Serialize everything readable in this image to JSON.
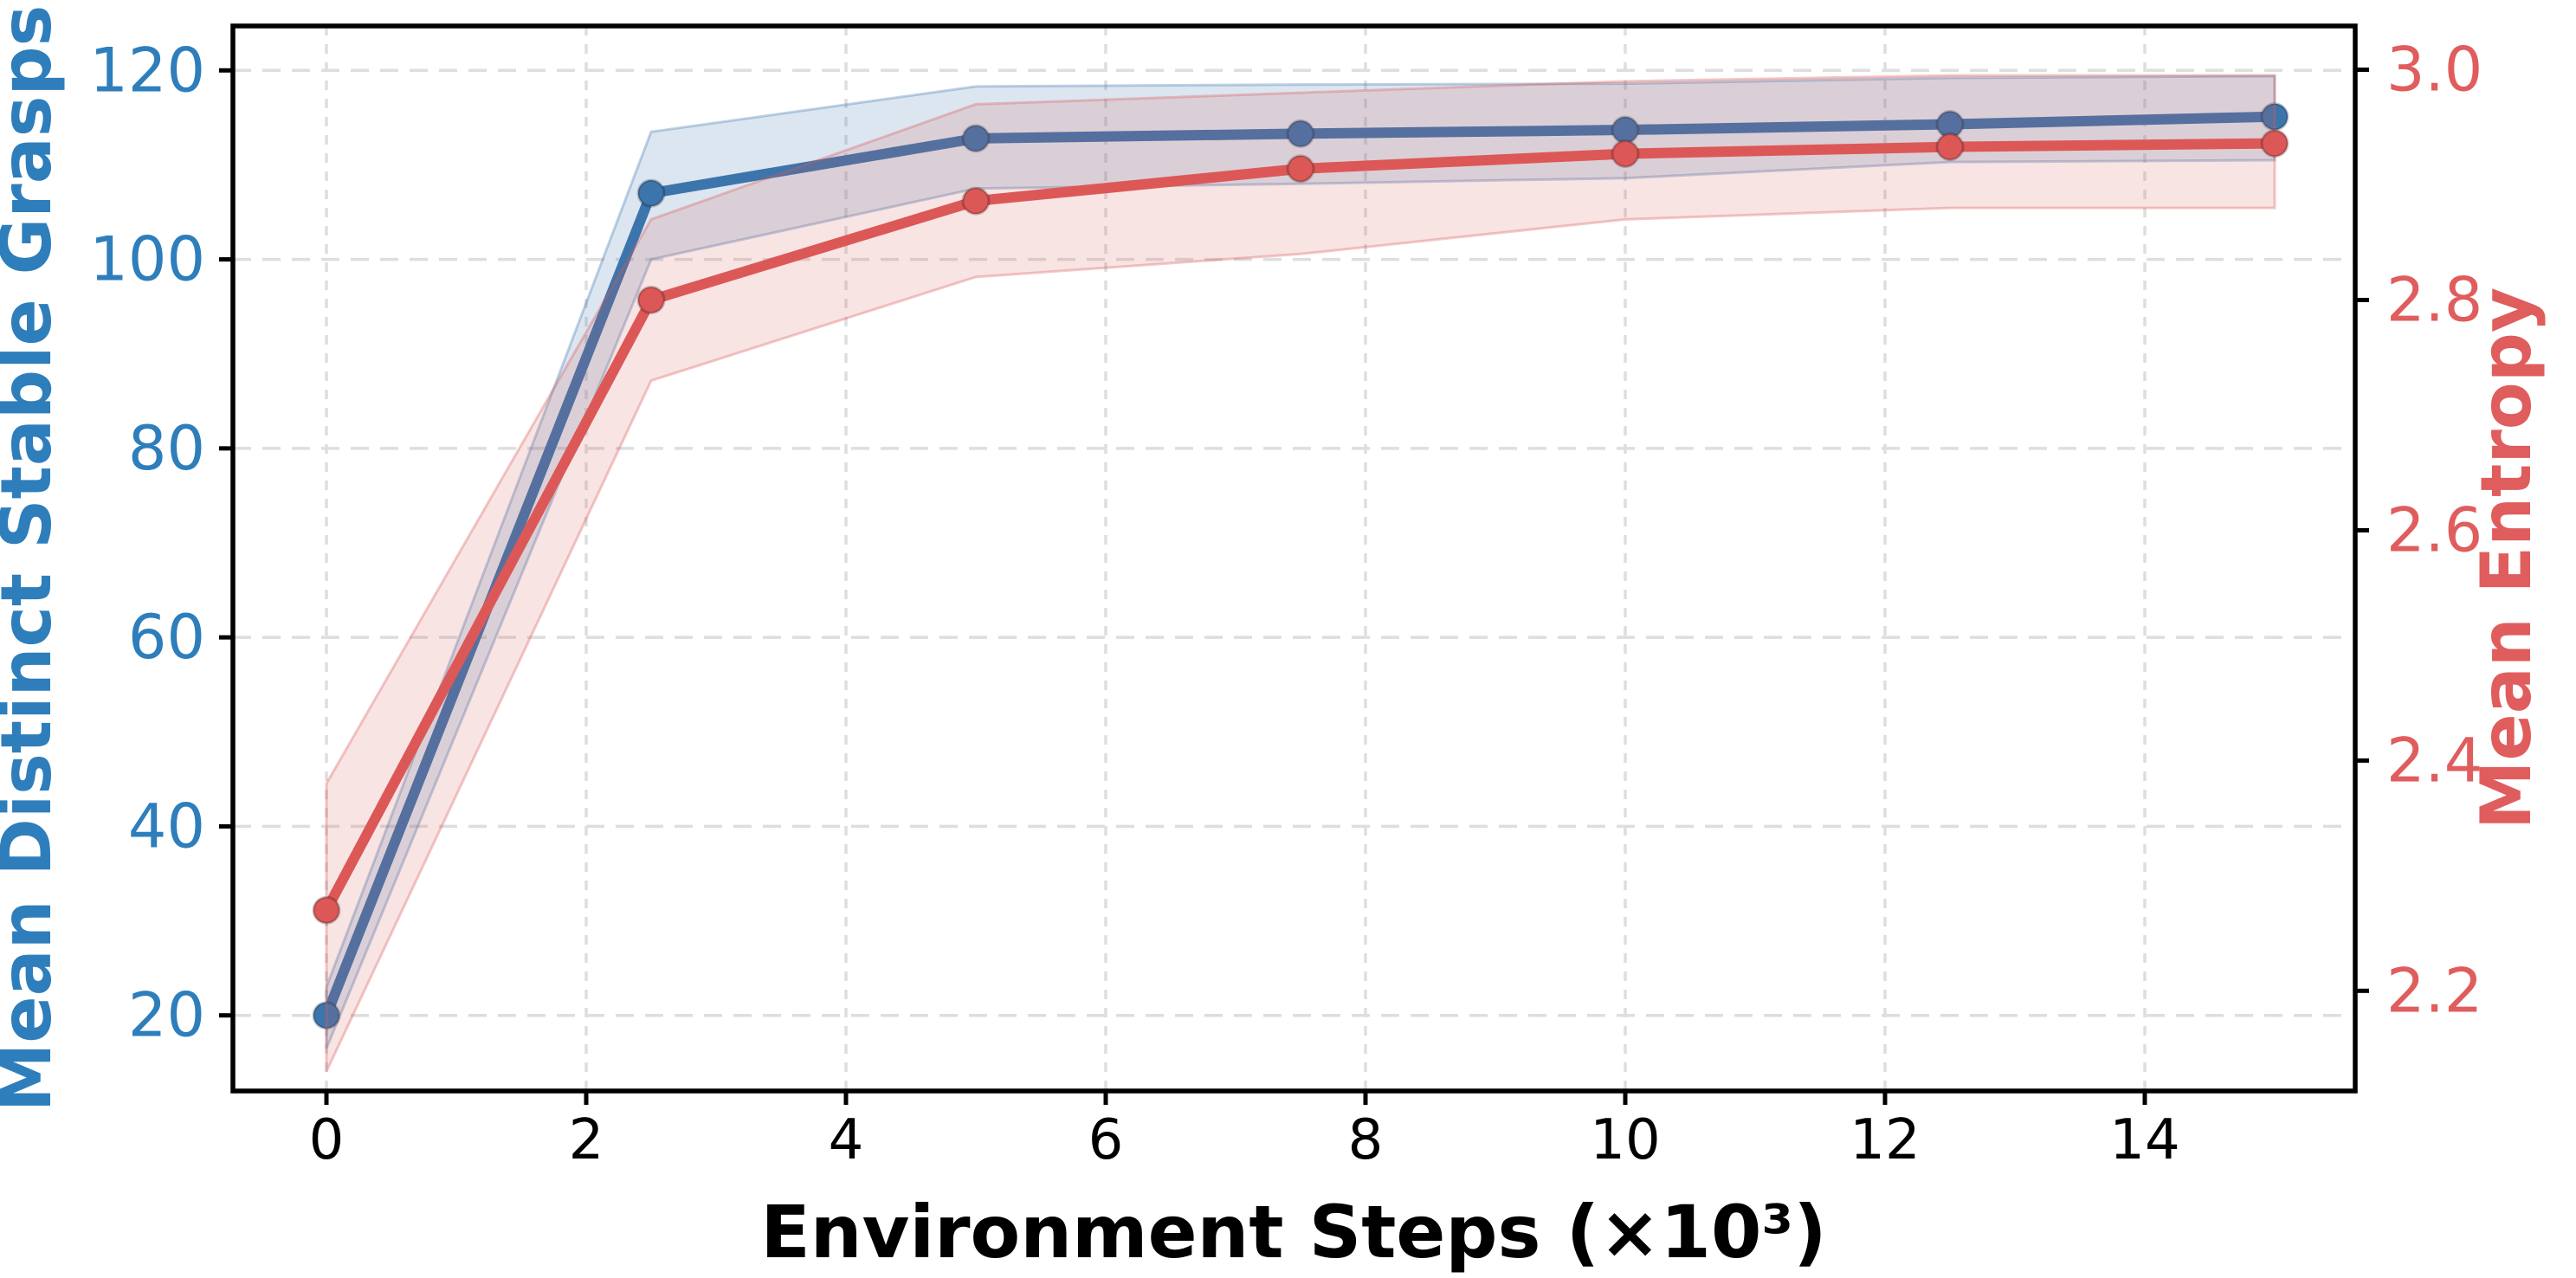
{
  "figure": {
    "background": "#ffffff",
    "xlabel": "Environment Steps (×10³)",
    "ylabel_left": "Mean Distinct Stable Grasps",
    "ylabel_right": "Mean Entropy",
    "colors": {
      "blue_line": "#3c75ac",
      "blue_text": "#2e7ebc",
      "red_line": "#dc5857",
      "red_text": "#e05d5d",
      "grid": "#dedede",
      "spine": "#000000",
      "x_tick_text": "#000000"
    }
  },
  "chart_data": {
    "type": "line",
    "title": "",
    "xlabel": "Environment Steps (×10³)",
    "ylabel_left": "Mean Distinct Stable Grasps",
    "ylabel_right": "Mean Entropy",
    "x": [
      0,
      2.5,
      5,
      7.5,
      10,
      12.5,
      15
    ],
    "series": [
      {
        "name": "Mean Distinct Stable Grasps",
        "axis": "left",
        "color": "#3c75ac",
        "values": [
          20,
          107,
          112.8,
          113.3,
          113.7,
          114.3,
          115.1
        ],
        "band_low": [
          16.5,
          100,
          107.5,
          108,
          108.6,
          110.3,
          110.5
        ],
        "band_high": [
          23,
          113.5,
          118.3,
          118.5,
          118.6,
          119.2,
          119.4
        ],
        "band_opacity": 0.18
      },
      {
        "name": "Mean Entropy",
        "axis": "right",
        "color": "#dc5857",
        "values": [
          2.27,
          2.8,
          2.886,
          2.914,
          2.927,
          2.933,
          2.936
        ],
        "band_low": [
          2.13,
          2.73,
          2.82,
          2.84,
          2.87,
          2.88,
          2.88
        ],
        "band_high": [
          2.38,
          2.87,
          2.97,
          2.98,
          2.99,
          2.995,
          2.995
        ],
        "band_opacity": 0.16
      }
    ],
    "x_ticks": {
      "values": [
        0,
        2,
        4,
        6,
        8,
        10,
        12,
        14
      ],
      "labels": [
        "0",
        "2",
        "4",
        "6",
        "8",
        "10",
        "12",
        "14"
      ]
    },
    "y_ticks_left": {
      "values": [
        20,
        40,
        60,
        80,
        100,
        120
      ],
      "labels": [
        "20",
        "40",
        "60",
        "80",
        "100",
        "120"
      ]
    },
    "y_ticks_right": {
      "values": [
        2.2,
        2.4,
        2.6,
        2.8,
        3.0
      ],
      "labels": [
        "2.2",
        "2.4",
        "2.6",
        "2.8",
        "3.0"
      ]
    },
    "xlim": [
      -0.72,
      15.62
    ],
    "ylim_left": [
      12.0,
      124.7
    ],
    "ylim_right": [
      2.113,
      3.038
    ],
    "grid": {
      "show": true,
      "style": "dashed",
      "color": "#dedede"
    },
    "legend": {
      "show": false
    },
    "marker": "circle",
    "line_width": 12,
    "marker_radius": 15
  }
}
